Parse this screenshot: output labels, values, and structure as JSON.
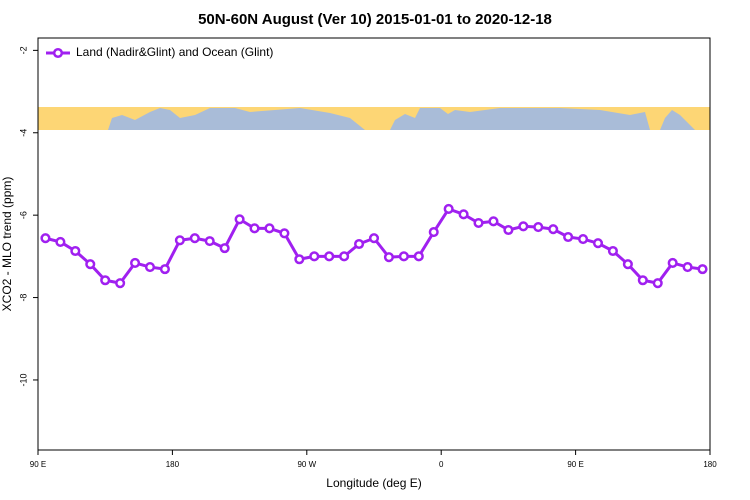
{
  "chart_data": {
    "type": "line",
    "title": "50N-60N August (Ver 10)   2015-01-01 to 2020-12-18",
    "xlabel": "Longitude (deg E)",
    "ylabel": "XCO2 - MLO trend (ppm)",
    "x": [
      95,
      105,
      115,
      125,
      135,
      145,
      155,
      165,
      175,
      185,
      195,
      205,
      215,
      225,
      235,
      245,
      255,
      265,
      275,
      285,
      295,
      305,
      315,
      325,
      335,
      345,
      355,
      365,
      375,
      385,
      395,
      405,
      415,
      425,
      435,
      445,
      455,
      465,
      475,
      485,
      495,
      505,
      515,
      525,
      535
    ],
    "series": [
      {
        "name": "Land (Nadir&Glint) and Ocean (Glint)",
        "color": "#a020f0",
        "values": [
          -6.56,
          -6.65,
          -6.87,
          -7.19,
          -7.58,
          -7.65,
          -7.16,
          -7.26,
          -7.31,
          -6.61,
          -6.56,
          -6.63,
          -6.8,
          -6.1,
          -6.32,
          -6.32,
          -6.44,
          -7.07,
          -7.0,
          -7.0,
          -7.0,
          -6.7,
          -6.56,
          -7.02,
          -7.0,
          -7.0,
          -6.41,
          -5.85,
          -5.98,
          -6.19,
          -6.15,
          -6.36,
          -6.27,
          -6.29,
          -6.34,
          -6.53,
          -6.58,
          -6.68,
          -6.87,
          -7.19,
          -7.58,
          -7.65,
          -7.16,
          -7.26,
          -7.31
        ]
      }
    ],
    "xlim": [
      90,
      540
    ],
    "xticks": [
      {
        "value": 90,
        "label": "90 E"
      },
      180,
      {
        "value": 270,
        "label": "90 W"
      },
      {
        "value": 360,
        "label": "0"
      },
      {
        "value": 450,
        "label": "90 E"
      },
      {
        "value": 540,
        "label": "180"
      }
    ],
    "ylim": [
      -11.7,
      -1.7
    ],
    "yticks": [
      -2,
      -4,
      -6,
      -8,
      -10
    ],
    "legend": "top-left"
  }
}
